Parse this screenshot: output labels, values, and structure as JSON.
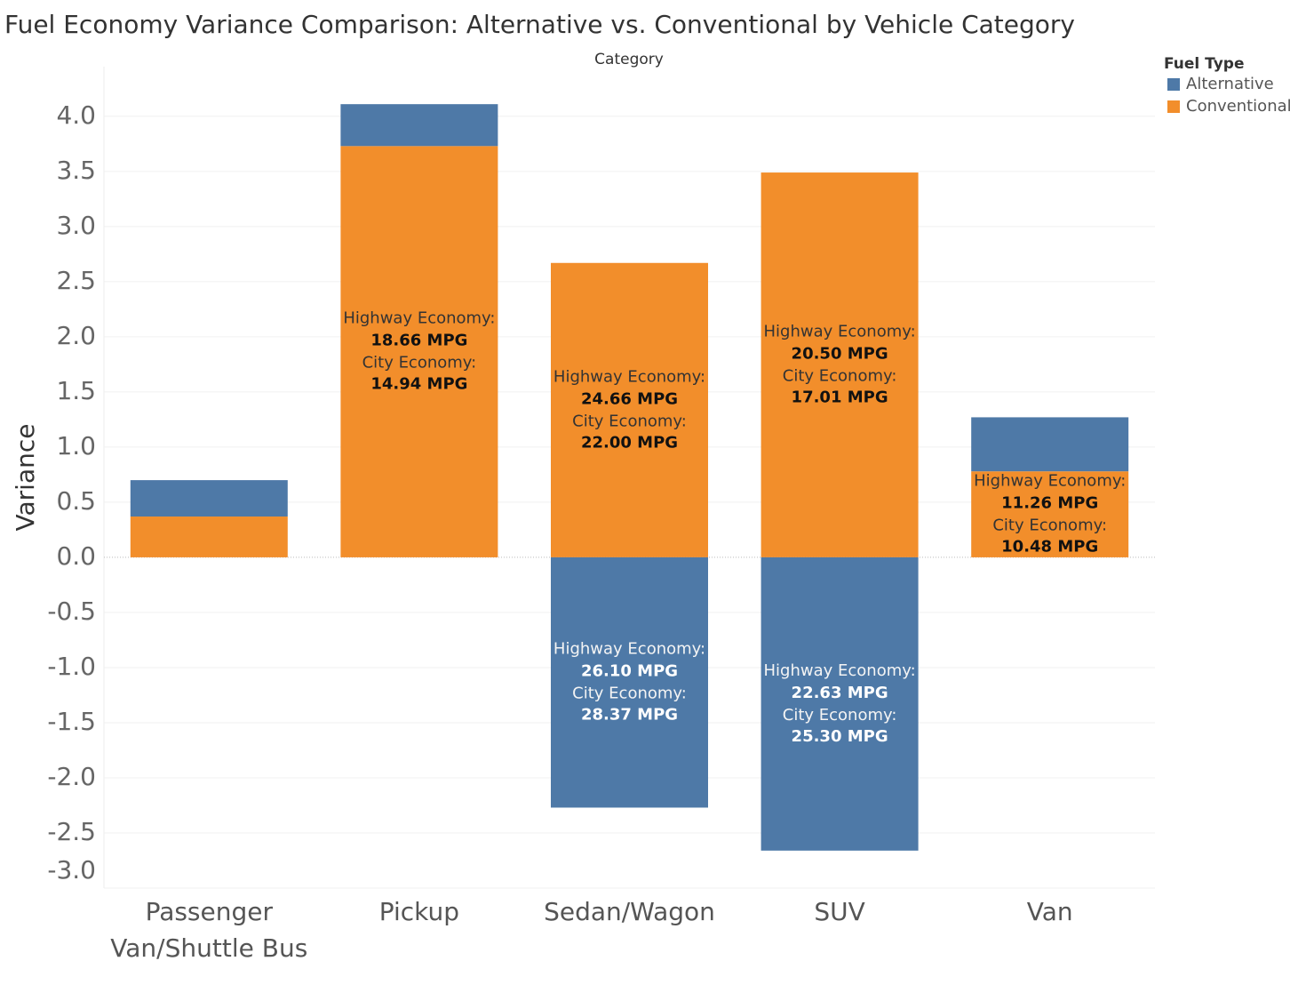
{
  "chart_data": {
    "type": "stacked-bar",
    "title": "Fuel Economy Variance Comparison: Alternative vs. Conventional by Vehicle Category",
    "column_header": "Category",
    "y_label": "Variance",
    "legend_title": "Fuel Type",
    "legend_position": "top-right",
    "grid": true,
    "categories": [
      "Passenger Van/Shuttle Bus",
      "Pickup",
      "Sedan/Wagon",
      "SUV",
      "Van"
    ],
    "highway_caption": "Highway Economy:",
    "city_caption": "City Economy:",
    "series": [
      {
        "name": "Alternative",
        "color": "#4e79a7",
        "values": [
          0.33,
          0.38,
          -2.27,
          -2.66,
          0.49
        ],
        "highway_labels": [
          null,
          null,
          "26.10 MPG",
          "22.63 MPG",
          null
        ],
        "city_labels": [
          null,
          null,
          "28.37 MPG",
          "25.30 MPG",
          null
        ]
      },
      {
        "name": "Conventional",
        "color": "#f28e2b",
        "values": [
          0.37,
          3.73,
          2.67,
          3.49,
          0.78
        ],
        "highway_labels": [
          null,
          "18.66 MPG",
          "24.66 MPG",
          "20.50 MPG",
          "11.26 MPG"
        ],
        "city_labels": [
          null,
          "14.94 MPG",
          "22.00 MPG",
          "17.01 MPG",
          "10.48 MPG"
        ]
      }
    ],
    "ylim": [
      -3.0,
      4.45
    ],
    "yticks": [
      {
        "value": 4.0,
        "label": "4.0"
      },
      3.5,
      {
        "value": 3.0,
        "label": "3.0"
      },
      2.5,
      {
        "value": 2.0,
        "label": "2.0"
      },
      1.5,
      {
        "value": 1.0,
        "label": "1.0"
      },
      0.5,
      {
        "value": 0.0,
        "label": "0.0"
      },
      -0.5,
      {
        "value": -1.0,
        "label": "-1.0"
      },
      -1.5,
      {
        "value": -2.0,
        "label": "-2.0"
      },
      -2.5,
      {
        "value": -3.0,
        "label": "-3.0"
      }
    ]
  }
}
